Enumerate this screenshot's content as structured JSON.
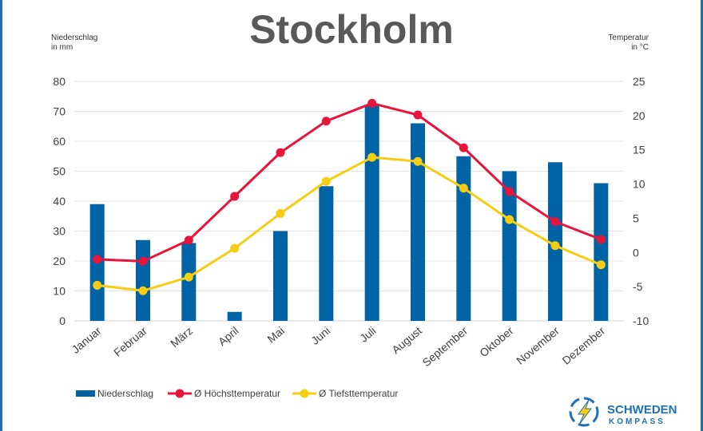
{
  "title": "Stockholm",
  "left_axis_note": [
    "Niederschlag",
    "in mm"
  ],
  "right_axis_note": [
    "Temperatur",
    "in °C"
  ],
  "colors": {
    "bars": "#0063a6",
    "high": "#e8143c",
    "low": "#f5cd12",
    "grid": "#e3e3e3",
    "frame": "#1f6fb8",
    "logo": "#1f6fb8"
  },
  "chart_data": {
    "type": "bar",
    "title": "Stockholm",
    "categories": [
      "Januar",
      "Februar",
      "März",
      "April",
      "Mai",
      "Juni",
      "Juli",
      "August",
      "September",
      "Oktober",
      "November",
      "Dezember"
    ],
    "ylabel": "Niederschlag in mm",
    "y2label": "Temperatur in °C",
    "ylim": [
      0,
      80
    ],
    "y2lim": [
      -10,
      25
    ],
    "yticks": [
      0,
      10,
      20,
      30,
      40,
      50,
      60,
      70,
      80
    ],
    "y2ticks": [
      -10,
      -5,
      0,
      5,
      10,
      15,
      20,
      25
    ],
    "grid": true,
    "legend_position": "bottom-left",
    "series": [
      {
        "name": "Niederschlag",
        "type": "bar",
        "axis": "left",
        "values": [
          39,
          27,
          26,
          3,
          30,
          45,
          72,
          66,
          55,
          50,
          53,
          46
        ]
      },
      {
        "name": "Ø Höchsttemperatur",
        "type": "line",
        "axis": "right",
        "values": [
          -1,
          -1.3,
          1.8,
          8.2,
          14.6,
          19.2,
          21.8,
          20.1,
          15.3,
          8.9,
          4.5,
          1.9
        ]
      },
      {
        "name": "Ø Tiefsttemperatur",
        "type": "line",
        "axis": "right",
        "values": [
          -4.8,
          -5.6,
          -3.6,
          0.6,
          5.7,
          10.4,
          13.9,
          13.3,
          9.4,
          4.8,
          1,
          -1.8
        ]
      }
    ]
  },
  "logo": {
    "line1": "SCHWEDEN",
    "line2": "KOMPASS"
  }
}
